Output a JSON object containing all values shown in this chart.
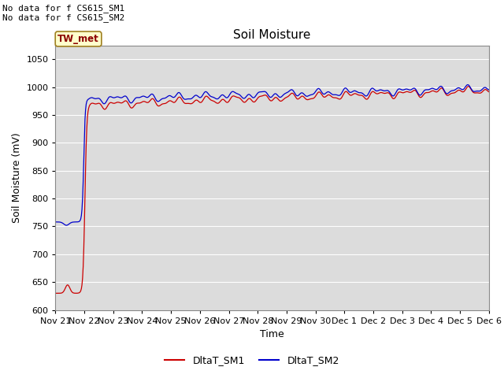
{
  "title": "Soil Moisture",
  "ylabel": "Soil Moisture (mV)",
  "xlabel": "Time",
  "ylim": [
    600,
    1075
  ],
  "yticks": [
    600,
    650,
    700,
    750,
    800,
    850,
    900,
    950,
    1000,
    1050
  ],
  "annotation_text": "No data for f CS615_SM1\nNo data for f CS615_SM2",
  "box_label": "TW_met",
  "legend_labels": [
    "DltaT_SM1",
    "DltaT_SM2"
  ],
  "line_colors": [
    "#cc0000",
    "#0000cc"
  ],
  "bg_color": "#dcdcdc",
  "fig_bg": "#ffffff",
  "title_fontsize": 11,
  "axis_label_fontsize": 9,
  "tick_fontsize": 8,
  "annotation_fontsize": 8,
  "legend_fontsize": 9
}
